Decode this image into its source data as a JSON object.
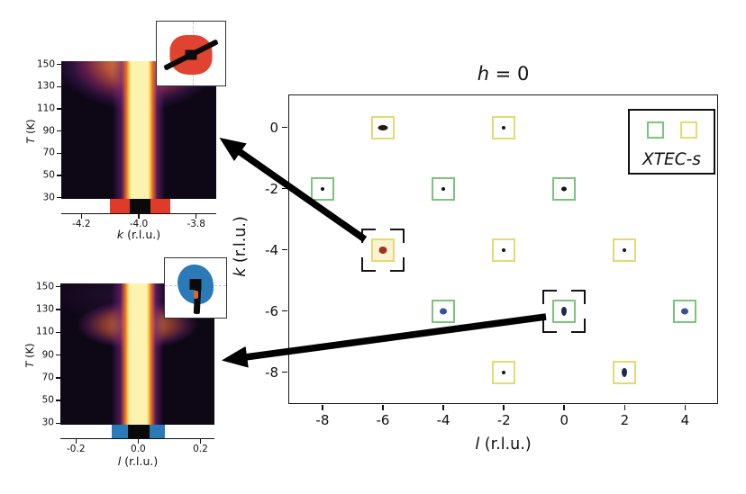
{
  "figure": {
    "background": "#ffffff"
  },
  "chart_data": [
    {
      "id": "tmap_k",
      "type": "heatmap",
      "xlabel_var": "k",
      "xlabel_rest": " (r.l.u.)",
      "ylabel_var": "T",
      "ylabel_rest": " (K)",
      "xlim": [
        -4.27,
        -3.73
      ],
      "ylim": [
        28,
        153
      ],
      "xtick_labels": [
        "-4.2",
        "-4.0",
        "-3.8"
      ],
      "xtick_values": [
        -4.2,
        -4.0,
        -3.8
      ],
      "ytick_labels": [
        "150",
        "130",
        "110",
        "90",
        "70",
        "50",
        "30"
      ],
      "ytick_values": [
        150,
        130,
        110,
        90,
        70,
        50,
        30
      ],
      "bright_column": {
        "center": -4.0,
        "halfwidth": 0.03
      },
      "diffuse_onset_T": 110,
      "colormap": "inferno-like",
      "strip": {
        "background": "#ffffff",
        "blocks": [
          {
            "from": -4.1,
            "to": -4.03,
            "color": "#e03a28"
          },
          {
            "from": -4.03,
            "to": -3.96,
            "color": "#0a0a0a"
          },
          {
            "from": -3.96,
            "to": -3.89,
            "color": "#e03a28"
          }
        ]
      },
      "inset": {
        "blob_color": "#e04330",
        "crosshair": "vertical"
      }
    },
    {
      "id": "tmap_l",
      "type": "heatmap",
      "xlabel_var": "l",
      "xlabel_rest": " (r.l.u.)",
      "ylabel_var": "T",
      "ylabel_rest": " (K)",
      "xlim": [
        -0.25,
        0.245
      ],
      "ylim": [
        28,
        153
      ],
      "xtick_labels": [
        "-0.2",
        "0.0",
        "0.2"
      ],
      "xtick_values": [
        -0.2,
        0.0,
        0.2
      ],
      "ytick_labels": [
        "150",
        "130",
        "110",
        "90",
        "70",
        "50",
        "30"
      ],
      "ytick_values": [
        150,
        130,
        110,
        90,
        70,
        50,
        30
      ],
      "bright_column": {
        "center": 0.0,
        "halfwidth": 0.03
      },
      "diffuse_onset_T": 110,
      "colormap": "inferno-like",
      "strip": {
        "background": "#ffffff",
        "blocks": [
          {
            "from": -0.085,
            "to": -0.034,
            "color": "#2b7ab8"
          },
          {
            "from": -0.034,
            "to": 0.036,
            "color": "#0a0a0a"
          },
          {
            "from": 0.036,
            "to": 0.085,
            "color": "#2b7ab8"
          }
        ]
      },
      "inset": {
        "blob_color": "#2b7ab8",
        "crosshair": "horizontal",
        "accent_color": "#e0622d"
      }
    },
    {
      "id": "peak_map",
      "type": "scatter",
      "title_var": "h",
      "title_rest": " = 0",
      "xlabel_var": "l",
      "xlabel_rest": " (r.l.u.)",
      "ylabel_var": "k",
      "ylabel_rest": " (r.l.u.)",
      "xlim": [
        -9.1,
        5.0
      ],
      "ylim": [
        -8.95,
        1.05
      ],
      "xtick_labels": [
        "-8",
        "-6",
        "-4",
        "-2",
        "0",
        "2",
        "4"
      ],
      "xtick_values": [
        -8,
        -6,
        -4,
        -2,
        0,
        2,
        4
      ],
      "ytick_labels": [
        "0",
        "-2",
        "-4",
        "-6",
        "-8"
      ],
      "ytick_values": [
        0,
        -2,
        -4,
        -6,
        -8
      ],
      "legend": {
        "label": "XTEC-s",
        "entries": [
          {
            "cluster": "green",
            "color": "#7cc47c"
          },
          {
            "cluster": "yellow",
            "color": "#e4da72"
          }
        ]
      },
      "clusters": {
        "green": {
          "box_color": "#7cc47c",
          "box_fill": "#ffffff"
        },
        "yellow": {
          "box_color": "#e4da72",
          "box_fill": "#ffffff"
        }
      },
      "dot_styles": {
        "tiny-black": {
          "color": "#151515",
          "w": 4,
          "h": 4
        },
        "small-black": {
          "color": "#141414",
          "w": 6,
          "h": 5
        },
        "dark-smear": {
          "color": "#241710",
          "w": 11,
          "h": 6
        },
        "red": {
          "color": "#9c3420",
          "w": 9,
          "h": 8
        },
        "blue": {
          "color": "#35539c",
          "w": 8,
          "h": 7
        },
        "navy-teardrop": {
          "color": "#1b2a4e",
          "w": 6,
          "h": 10
        }
      },
      "peaks": [
        {
          "l": -6,
          "k": 0,
          "cluster": "yellow",
          "dot": "dark-smear"
        },
        {
          "l": -2,
          "k": 0,
          "cluster": "yellow",
          "dot": "tiny-black"
        },
        {
          "l": -8,
          "k": -2,
          "cluster": "green",
          "dot": "tiny-black"
        },
        {
          "l": -4,
          "k": -2,
          "cluster": "green",
          "dot": "tiny-black"
        },
        {
          "l": 0,
          "k": -2,
          "cluster": "green",
          "dot": "small-black"
        },
        {
          "l": -6,
          "k": -4,
          "cluster": "yellow",
          "dot": "red",
          "bracketed": true,
          "fill": "#faf3d2"
        },
        {
          "l": -2,
          "k": -4,
          "cluster": "yellow",
          "dot": "tiny-black"
        },
        {
          "l": 2,
          "k": -4,
          "cluster": "yellow",
          "dot": "tiny-black"
        },
        {
          "l": -4,
          "k": -6,
          "cluster": "green",
          "dot": "blue"
        },
        {
          "l": 0,
          "k": -6,
          "cluster": "green",
          "dot": "navy-teardrop",
          "bracketed": true
        },
        {
          "l": 4,
          "k": -6,
          "cluster": "green",
          "dot": "blue"
        },
        {
          "l": -2,
          "k": -8,
          "cluster": "yellow",
          "dot": "tiny-black"
        },
        {
          "l": 2,
          "k": -8,
          "cluster": "yellow",
          "dot": "navy-teardrop"
        }
      ]
    }
  ]
}
